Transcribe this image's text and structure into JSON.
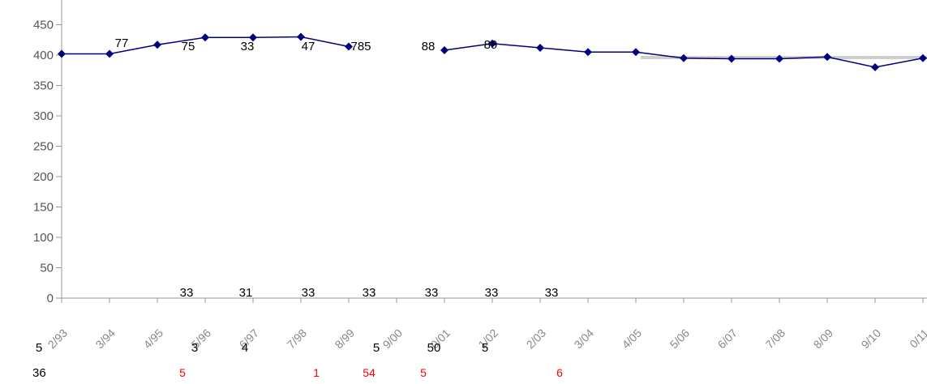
{
  "chart_data": {
    "type": "line",
    "title": "",
    "xlabel": "",
    "ylabel": "",
    "ylim": [
      0,
      450
    ],
    "y_ticks": [
      "0",
      "50",
      "100",
      "150",
      "200",
      "250",
      "300",
      "350",
      "400",
      "450"
    ],
    "y_ticks_display": [
      "0",
      "50",
      "100",
      "150",
      "200",
      "250",
      "300",
      "350",
      "400",
      "450"
    ],
    "categories": [
      "2/93",
      "3/94",
      "4/95",
      "5/96",
      "6/97",
      "7/98",
      "8/99",
      "9/00",
      "0/01",
      "1/02",
      "2/03",
      "3/04",
      "4/05",
      "5/06",
      "6/07",
      "7/08",
      "8/09",
      "9/10",
      "0/11"
    ],
    "series": [
      {
        "values": [
          402,
          402,
          417,
          429,
          429,
          430,
          414,
          null,
          408,
          419,
          412,
          405,
          405,
          395,
          394,
          394,
          397,
          380,
          395
        ]
      }
    ],
    "reference_line": {
      "value": 396,
      "color": "#cfcfcf"
    },
    "colors": {
      "line": "#00007f",
      "marker": "#00007f",
      "axis": "#999999",
      "reference": "#cfcfcf",
      "red_text": "#ff0000"
    },
    "partial_value_labels": [
      "77",
      "75",
      "33",
      "47",
      "785",
      "88",
      "89"
    ],
    "stray_labels": [
      "33",
      "31",
      "33",
      "33",
      "33",
      "33",
      "33"
    ],
    "lower_labels": [
      "5",
      "3",
      "4",
      "5",
      "50",
      "5"
    ],
    "corner_label": "36",
    "red_labels": [
      "5",
      "1",
      "54",
      "5",
      "6"
    ]
  }
}
